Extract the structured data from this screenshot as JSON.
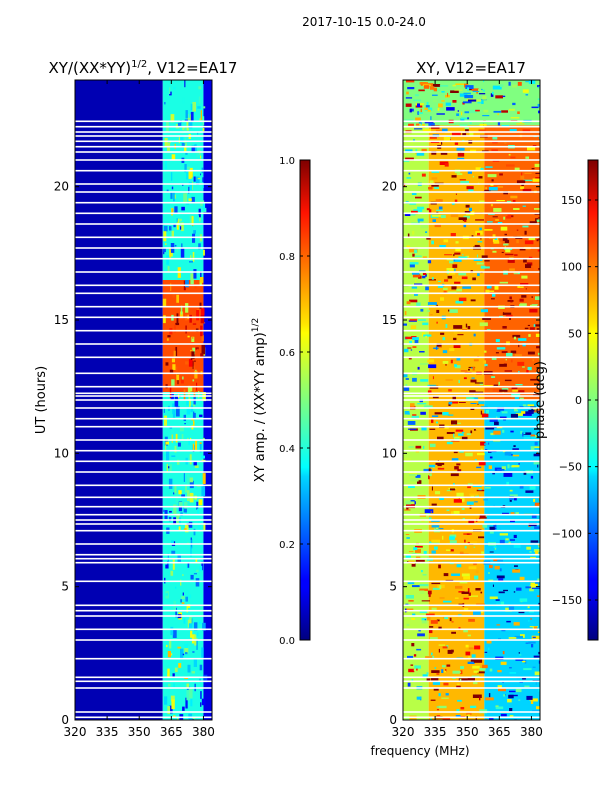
{
  "suptitle": "2017-10-15 0.0-24.0",
  "shared_xlabel": "frequency (MHz)",
  "chart_data": [
    {
      "type": "heatmap",
      "title": "XY/(XX*YY)",
      "title_exponent": "1/2",
      "title_suffix": ", V12=EA17",
      "xlabel": "",
      "ylabel": "UT (hours)",
      "xlim": [
        320,
        384
      ],
      "ylim": [
        0,
        24
      ],
      "xticks": [
        320,
        335,
        350,
        365,
        380
      ],
      "yticks": [
        0,
        5,
        10,
        15,
        20
      ],
      "colorbar": {
        "label": "XY amp. / (XX*YY amp)",
        "label_exponent": "1/2",
        "range": [
          0.0,
          1.0
        ],
        "ticks": [
          0.0,
          0.2,
          0.4,
          0.6,
          0.8,
          1.0
        ],
        "tick_labels": [
          "0.0",
          "0.2",
          "0.4",
          "0.6",
          "0.8",
          "1.0"
        ],
        "colormap": "jet"
      },
      "regions": [
        {
          "freq": [
            320,
            361
          ],
          "time": [
            0,
            24
          ],
          "value": 0.05,
          "note": "low amplitude band"
        },
        {
          "freq": [
            361,
            380
          ],
          "time": [
            0,
            12.3
          ],
          "value": 0.4,
          "note": "speckled mid amplitude"
        },
        {
          "freq": [
            361,
            380
          ],
          "time": [
            12.3,
            16.5
          ],
          "value": 0.8,
          "note": "high amplitude patch"
        },
        {
          "freq": [
            361,
            380
          ],
          "time": [
            16.5,
            24
          ],
          "value": 0.4,
          "note": "speckled mid amplitude"
        },
        {
          "freq": [
            380,
            384
          ],
          "time": [
            0,
            24
          ],
          "value": 0.1
        }
      ],
      "flagged_times": [
        0.1,
        0.3,
        1.2,
        1.45,
        1.6,
        2.3,
        3.0,
        3.4,
        3.9,
        4.1,
        4.3,
        5.2,
        5.9,
        6.05,
        6.2,
        6.6,
        7.1,
        7.35,
        7.5,
        7.7,
        8.0,
        8.35,
        8.8,
        9.3,
        9.7,
        10.1,
        10.5,
        11.0,
        11.3,
        11.7,
        12.0,
        12.15,
        12.25,
        12.5,
        13.0,
        13.6,
        14.1,
        14.6,
        15.1,
        15.5,
        16.0,
        16.3,
        16.8,
        17.3,
        17.7,
        18.1,
        18.6,
        19.0,
        19.4,
        19.8,
        20.1,
        20.6,
        21.0,
        21.3,
        21.5,
        21.7,
        21.9,
        22.05,
        22.25,
        22.45
      ]
    },
    {
      "type": "heatmap",
      "title": "XY, V12=EA17",
      "xlabel": "frequency (MHz)",
      "ylabel": "",
      "xlim": [
        320,
        384
      ],
      "ylim": [
        0,
        24
      ],
      "xticks": [
        320,
        335,
        350,
        365,
        380
      ],
      "yticks": [
        0,
        5,
        10,
        15,
        20
      ],
      "colorbar": {
        "label": "phase (deg)",
        "range": [
          -180,
          180
        ],
        "ticks": [
          -150,
          -100,
          -50,
          0,
          50,
          100,
          150
        ],
        "tick_labels": [
          "−150",
          "−100",
          "−50",
          "0",
          "50",
          "100",
          "150"
        ],
        "colormap": "jet"
      },
      "regions": [
        {
          "freq": [
            320,
            332
          ],
          "time": [
            0,
            24
          ],
          "value": 20,
          "note": "mixed cyan/yellow"
        },
        {
          "freq": [
            332,
            358
          ],
          "time": [
            0,
            24
          ],
          "value": 70,
          "note": "yellow/orange"
        },
        {
          "freq": [
            358,
            384
          ],
          "time": [
            0,
            12
          ],
          "value": -60,
          "note": "mixed blue/yellow"
        },
        {
          "freq": [
            358,
            384
          ],
          "time": [
            12,
            22.3
          ],
          "value": 100,
          "note": "mixed orange/blue"
        },
        {
          "freq": [
            320,
            384
          ],
          "time": [
            22.3,
            24
          ],
          "value": 0,
          "note": "noisy top band"
        }
      ],
      "flagged_times": [
        0.1,
        0.3,
        1.2,
        1.45,
        1.6,
        2.3,
        3.0,
        3.4,
        3.9,
        4.1,
        4.3,
        5.2,
        5.9,
        6.05,
        6.2,
        6.6,
        7.1,
        7.35,
        7.5,
        7.7,
        8.0,
        8.35,
        8.8,
        9.3,
        9.7,
        10.1,
        10.5,
        11.0,
        11.3,
        11.7,
        12.0,
        12.15,
        12.25,
        12.5,
        13.0,
        13.6,
        14.1,
        14.6,
        15.1,
        15.5,
        16.0,
        16.3,
        16.8,
        17.3,
        17.7,
        18.1,
        18.6,
        19.0,
        19.4,
        19.8,
        20.1,
        20.6,
        21.0,
        21.3,
        21.5,
        21.7,
        21.9,
        22.05,
        22.25,
        22.45
      ]
    }
  ]
}
